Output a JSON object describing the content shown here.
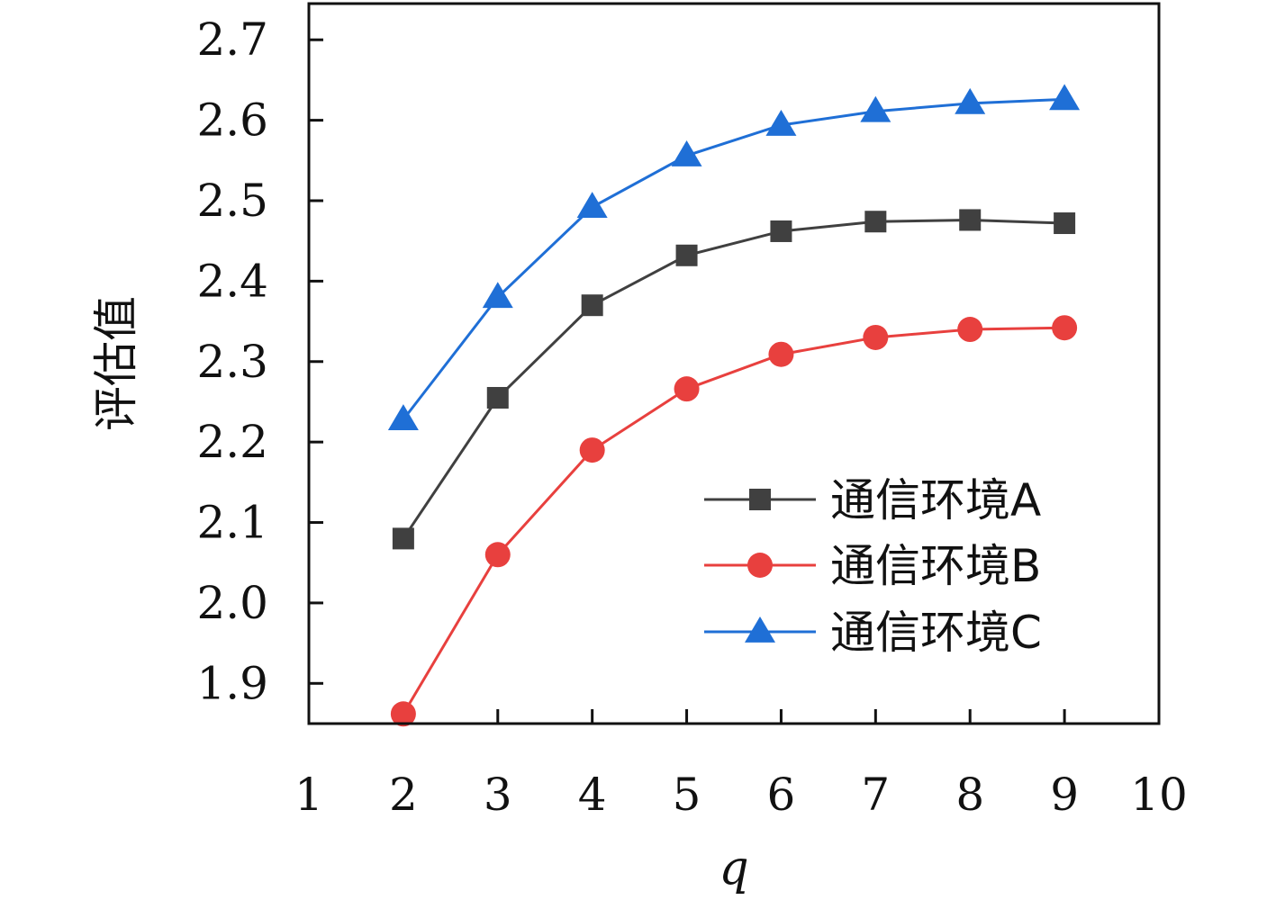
{
  "chart_data": {
    "type": "line",
    "title": "",
    "xlabel": "q",
    "ylabel": "评估值",
    "xlim": [
      1,
      10
    ],
    "ylim": [
      1.85,
      2.745
    ],
    "xticks": [
      "1",
      "2",
      "3",
      "4",
      "5",
      "6",
      "7",
      "8",
      "9",
      "10"
    ],
    "yticks": [
      "1.9",
      "2.0",
      "2.1",
      "2.2",
      "2.3",
      "2.4",
      "2.5",
      "2.6",
      "2.7"
    ],
    "x": [
      2,
      3,
      4,
      5,
      6,
      7,
      8,
      9
    ],
    "grid": false,
    "legend_position": "lower-right",
    "series": [
      {
        "name": "通信环境A",
        "color": "#404040",
        "marker": "square",
        "values": [
          2.08,
          2.255,
          2.37,
          2.432,
          2.462,
          2.474,
          2.476,
          2.472
        ]
      },
      {
        "name": "通信环境B",
        "color": "#e8403e",
        "marker": "circle",
        "values": [
          1.862,
          2.06,
          2.19,
          2.266,
          2.309,
          2.33,
          2.34,
          2.342
        ]
      },
      {
        "name": "通信环境C",
        "color": "#1f6fd6",
        "marker": "triangle",
        "values": [
          2.228,
          2.38,
          2.492,
          2.556,
          2.594,
          2.611,
          2.621,
          2.626
        ]
      }
    ]
  }
}
